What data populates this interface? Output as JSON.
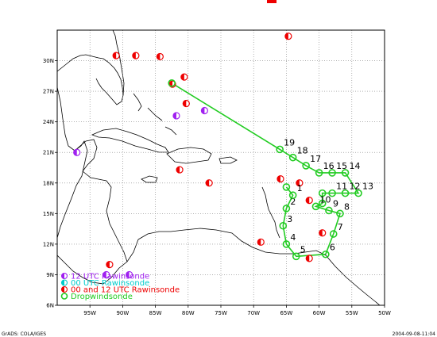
{
  "header": {
    "marker_color": "#ee0000"
  },
  "map": {
    "lon_min": -100,
    "lon_max": -50,
    "lat_min": 6,
    "lat_max": 33,
    "x_ticks": [
      "95W",
      "90W",
      "85W",
      "80W",
      "75W",
      "70W",
      "65W",
      "60W",
      "55W",
      "50W"
    ],
    "y_ticks": [
      "6N",
      "9N",
      "12N",
      "15N",
      "18N",
      "21N",
      "24N",
      "27N",
      "30N"
    ],
    "grid": true,
    "colors": {
      "coast": "#000000",
      "grid": "#808080",
      "track": "#22cc22"
    }
  },
  "legend": {
    "items": [
      {
        "label": "12 UTC Rawinsonde",
        "color": "#a020f0",
        "symbol": "half-filled-circle"
      },
      {
        "label": "00 UTC Rawinsonde",
        "color": "#00cccc",
        "symbol": "half-filled-circle"
      },
      {
        "label": "00 and 12 UTC Rawinsonde",
        "color": "#ee0000",
        "symbol": "half-filled-circle"
      },
      {
        "label": "Dropwindsonde",
        "color": "#22cc22",
        "symbol": "hollow-circle"
      }
    ]
  },
  "dropwindsondes": [
    {
      "lon": -82.5,
      "lat": 27.8,
      "label": ""
    },
    {
      "lon": -66.0,
      "lat": 21.3,
      "label": "19"
    },
    {
      "lon": -64.0,
      "lat": 20.5,
      "label": "18"
    },
    {
      "lon": -62.0,
      "lat": 19.7,
      "label": "17"
    },
    {
      "lon": -60.0,
      "lat": 19.0,
      "label": "16"
    },
    {
      "lon": -58.0,
      "lat": 19.0,
      "label": "15"
    },
    {
      "lon": -56.0,
      "lat": 19.0,
      "label": "14"
    },
    {
      "lon": -54.0,
      "lat": 17.0,
      "label": "13"
    },
    {
      "lon": -56.0,
      "lat": 17.0,
      "label": "12"
    },
    {
      "lon": -58.0,
      "lat": 17.0,
      "label": "11"
    },
    {
      "lon": -59.5,
      "lat": 17.0,
      "label": ""
    },
    {
      "lon": -59.5,
      "lat": 16.0,
      "label": ""
    },
    {
      "lon": -60.5,
      "lat": 15.7,
      "label": "10"
    },
    {
      "lon": -58.5,
      "lat": 15.3,
      "label": "9"
    },
    {
      "lon": -56.8,
      "lat": 15.0,
      "label": "8"
    },
    {
      "lon": -57.8,
      "lat": 13.0,
      "label": "7"
    },
    {
      "lon": -59.0,
      "lat": 11.0,
      "label": "6"
    },
    {
      "lon": -63.5,
      "lat": 10.8,
      "label": "5"
    },
    {
      "lon": -65.0,
      "lat": 12.0,
      "label": "4"
    },
    {
      "lon": -65.5,
      "lat": 13.8,
      "label": "3"
    },
    {
      "lon": -65.0,
      "lat": 15.5,
      "label": "2"
    },
    {
      "lon": -64.0,
      "lat": 16.8,
      "label": "1"
    },
    {
      "lon": -65.0,
      "lat": 17.6,
      "label": ""
    }
  ],
  "rawinsondes": [
    {
      "lon": -64.7,
      "lat": 32.4,
      "type": "00 and 12 UTC Rawinsonde"
    },
    {
      "lon": -91.0,
      "lat": 30.5,
      "type": "00 and 12 UTC Rawinsonde"
    },
    {
      "lon": -88.0,
      "lat": 30.5,
      "type": "00 and 12 UTC Rawinsonde"
    },
    {
      "lon": -84.3,
      "lat": 30.4,
      "type": "00 and 12 UTC Rawinsonde"
    },
    {
      "lon": -80.6,
      "lat": 28.4,
      "type": "00 and 12 UTC Rawinsonde"
    },
    {
      "lon": -82.4,
      "lat": 27.7,
      "type": "00 and 12 UTC Rawinsonde"
    },
    {
      "lon": -80.3,
      "lat": 25.8,
      "type": "00 and 12 UTC Rawinsonde"
    },
    {
      "lon": -81.8,
      "lat": 24.6,
      "type": "12 UTC Rawinsonde"
    },
    {
      "lon": -77.5,
      "lat": 25.1,
      "type": "12 UTC Rawinsonde"
    },
    {
      "lon": -97.0,
      "lat": 21.0,
      "type": "12 UTC Rawinsonde"
    },
    {
      "lon": -81.3,
      "lat": 19.3,
      "type": "00 and 12 UTC Rawinsonde"
    },
    {
      "lon": -76.8,
      "lat": 18.0,
      "type": "00 and 12 UTC Rawinsonde"
    },
    {
      "lon": -65.9,
      "lat": 18.4,
      "type": "00 and 12 UTC Rawinsonde"
    },
    {
      "lon": -63.0,
      "lat": 18.0,
      "type": "00 and 12 UTC Rawinsonde"
    },
    {
      "lon": -61.5,
      "lat": 16.3,
      "type": "00 and 12 UTC Rawinsonde"
    },
    {
      "lon": -59.5,
      "lat": 13.1,
      "type": "00 and 12 UTC Rawinsonde"
    },
    {
      "lon": -68.9,
      "lat": 12.2,
      "type": "00 and 12 UTC Rawinsonde"
    },
    {
      "lon": -61.5,
      "lat": 10.6,
      "type": "00 and 12 UTC Rawinsonde"
    },
    {
      "lon": -89.0,
      "lat": 9.0,
      "type": "12 UTC Rawinsonde"
    },
    {
      "lon": -92.0,
      "lat": 10.0,
      "type": "00 and 12 UTC Rawinsonde"
    },
    {
      "lon": -92.5,
      "lat": 9.0,
      "type": "12 UTC Rawinsonde"
    }
  ],
  "footer": {
    "left": "GrADS: COLA/IGES",
    "right": "2004-09-08-11:04"
  }
}
